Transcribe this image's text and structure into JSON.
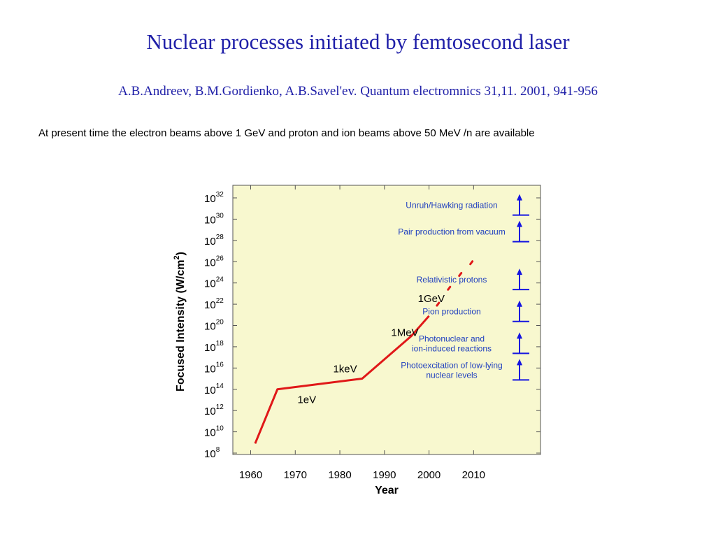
{
  "slide": {
    "title": "Nuclear processes initiated by femtosecond laser",
    "reference": "A.B.Andreev, B.M.Gordienko, A.B.Savel'ev. Quantum electromnics 31,11. 2001, 941-956",
    "note": "At present time the electron beams above 1 GeV and proton and ion beams above 50 MeV /n are available"
  },
  "colors": {
    "title": "#1f1fa8",
    "plot_background": "#f8f8cf",
    "series_line": "#e01818",
    "annotation_text": "#1f3fbf",
    "arrow": "#1515e0"
  },
  "chart_data": {
    "type": "line",
    "xlabel": "Year",
    "ylabel": "Focused Intensity  (W/cm",
    "ylabel_superscript": "2",
    "ylabel_suffix": ")",
    "xlim": [
      1956,
      2025
    ],
    "ylim_exponent": [
      8,
      33
    ],
    "y_scale": "log",
    "grid": false,
    "x_ticks": [
      1960,
      1970,
      1980,
      1990,
      2000,
      2010
    ],
    "y_tick_exponents": [
      8,
      10,
      12,
      14,
      16,
      18,
      20,
      22,
      24,
      26,
      28,
      30,
      32
    ],
    "y_tick_base": "10",
    "series": [
      {
        "style": "solid",
        "x": [
          1961,
          1966,
          1985,
          1996,
          2000
        ],
        "y_exponent": [
          8.9,
          14.0,
          15.0,
          19.0,
          20.9
        ]
      },
      {
        "style": "dotted",
        "x": [
          2002,
          2004.5,
          2007,
          2009.5
        ],
        "y_exponent": [
          22.0,
          23.5,
          24.8,
          25.9
        ]
      }
    ],
    "point_labels": [
      {
        "text": "1eV",
        "x": 1970.5,
        "y_exponent": 12.7
      },
      {
        "text": "1keV",
        "x": 1978.5,
        "y_exponent": 15.6
      },
      {
        "text": "1MeV",
        "x": 1991.5,
        "y_exponent": 19.0
      },
      {
        "text": "1GeV",
        "x": 1997.5,
        "y_exponent": 22.2
      }
    ],
    "thresholds": [
      {
        "lines": [
          "Unruh/Hawking radiation"
        ],
        "y_exponent": 31.3
      },
      {
        "lines": [
          "Pair production from vacuum"
        ],
        "y_exponent": 28.8
      },
      {
        "lines": [
          "Relativistic protons"
        ],
        "y_exponent": 24.3
      },
      {
        "lines": [
          "Pion production"
        ],
        "y_exponent": 21.3
      },
      {
        "lines": [
          "Photonuclear and",
          "ion-induced reactions"
        ],
        "y_exponent": 18.3
      },
      {
        "lines": [
          "Photoexcitation of low-lying",
          "nuclear levels"
        ],
        "y_exponent": 15.8
      }
    ]
  }
}
